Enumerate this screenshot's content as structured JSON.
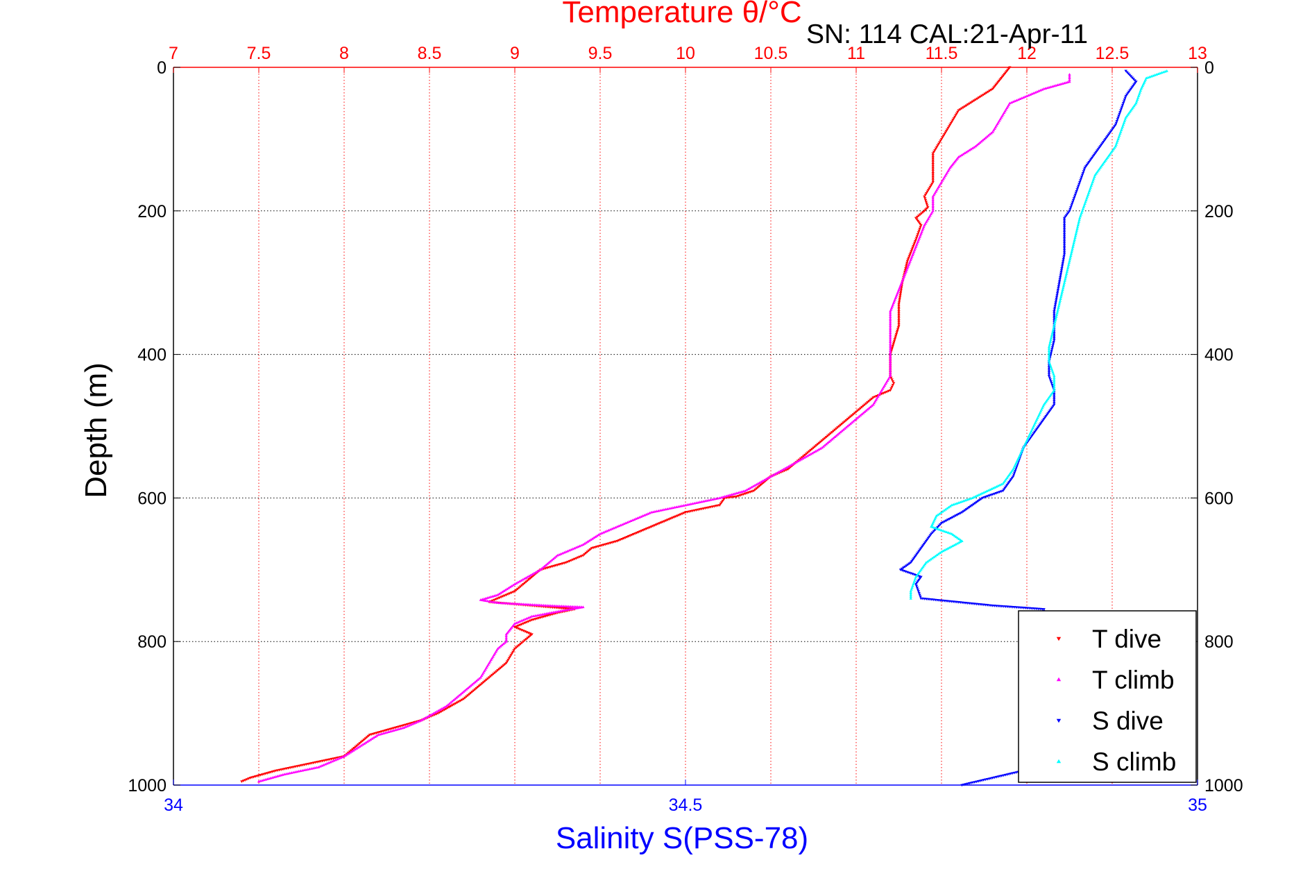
{
  "chart_data": {
    "type": "scatter",
    "title": "Temperature θ/°C",
    "subtitle": "SN: 114  CAL:21-Apr-11",
    "ylabel": "Depth (m)",
    "xlabel_bottom": "Salinity S(PSS-78)",
    "top_axis": {
      "range": [
        7,
        13
      ],
      "ticks": [
        "7",
        "7.5",
        "8",
        "8.5",
        "9",
        "9.5",
        "10",
        "10.5",
        "11",
        "11.5",
        "12",
        "12.5",
        "13"
      ],
      "color": "#ff0000"
    },
    "bottom_axis": {
      "range": [
        34,
        35
      ],
      "ticks": [
        "34",
        "34.5",
        "35"
      ],
      "color": "#0000ff"
    },
    "y_axis": {
      "range": [
        0,
        1000
      ],
      "reversed": true,
      "ticks": [
        "0",
        "200",
        "400",
        "600",
        "800",
        "1000"
      ]
    },
    "grid": true,
    "legend_position": "bottom-right",
    "series": [
      {
        "name": "T dive",
        "axis": "temperature",
        "color": "#ff0000",
        "marker": "triangle-down",
        "points": [
          [
            0,
            11.9
          ],
          [
            15,
            11.85
          ],
          [
            30,
            11.8
          ],
          [
            45,
            11.7
          ],
          [
            60,
            11.6
          ],
          [
            80,
            11.55
          ],
          [
            100,
            11.5
          ],
          [
            120,
            11.45
          ],
          [
            140,
            11.45
          ],
          [
            160,
            11.45
          ],
          [
            180,
            11.4
          ],
          [
            195,
            11.42
          ],
          [
            200,
            11.4
          ],
          [
            210,
            11.35
          ],
          [
            220,
            11.38
          ],
          [
            240,
            11.35
          ],
          [
            270,
            11.3
          ],
          [
            300,
            11.27
          ],
          [
            330,
            11.25
          ],
          [
            360,
            11.25
          ],
          [
            400,
            11.2
          ],
          [
            430,
            11.2
          ],
          [
            440,
            11.22
          ],
          [
            450,
            11.2
          ],
          [
            460,
            11.1
          ],
          [
            470,
            11.05
          ],
          [
            480,
            11.0
          ],
          [
            500,
            10.9
          ],
          [
            520,
            10.8
          ],
          [
            540,
            10.7
          ],
          [
            560,
            10.6
          ],
          [
            570,
            10.5
          ],
          [
            580,
            10.45
          ],
          [
            590,
            10.4
          ],
          [
            598,
            10.3
          ],
          [
            600,
            10.23
          ],
          [
            610,
            10.2
          ],
          [
            620,
            10.0
          ],
          [
            640,
            9.8
          ],
          [
            660,
            9.6
          ],
          [
            670,
            9.45
          ],
          [
            680,
            9.4
          ],
          [
            690,
            9.3
          ],
          [
            700,
            9.15
          ],
          [
            710,
            9.1
          ],
          [
            720,
            9.05
          ],
          [
            730,
            9.0
          ],
          [
            740,
            8.9
          ],
          [
            745,
            8.85
          ],
          [
            748,
            9.0
          ],
          [
            752,
            9.2
          ],
          [
            755,
            9.35
          ],
          [
            760,
            9.25
          ],
          [
            770,
            9.1
          ],
          [
            780,
            9.0
          ],
          [
            790,
            9.1
          ],
          [
            800,
            9.05
          ],
          [
            810,
            9.0
          ],
          [
            830,
            8.95
          ],
          [
            850,
            8.85
          ],
          [
            870,
            8.75
          ],
          [
            880,
            8.7
          ],
          [
            900,
            8.55
          ],
          [
            910,
            8.45
          ],
          [
            920,
            8.3
          ],
          [
            930,
            8.15
          ],
          [
            940,
            8.1
          ],
          [
            950,
            8.05
          ],
          [
            960,
            8.0
          ],
          [
            970,
            7.8
          ],
          [
            980,
            7.6
          ],
          [
            990,
            7.45
          ],
          [
            995,
            7.4
          ]
        ]
      },
      {
        "name": "T climb",
        "axis": "temperature",
        "color": "#ff00ff",
        "marker": "triangle-up",
        "points": [
          [
            10,
            12.25
          ],
          [
            20,
            12.25
          ],
          [
            30,
            12.1
          ],
          [
            40,
            12.0
          ],
          [
            50,
            11.9
          ],
          [
            70,
            11.85
          ],
          [
            90,
            11.8
          ],
          [
            110,
            11.7
          ],
          [
            125,
            11.6
          ],
          [
            140,
            11.55
          ],
          [
            160,
            11.5
          ],
          [
            180,
            11.45
          ],
          [
            200,
            11.45
          ],
          [
            220,
            11.4
          ],
          [
            250,
            11.35
          ],
          [
            280,
            11.3
          ],
          [
            310,
            11.25
          ],
          [
            340,
            11.2
          ],
          [
            360,
            11.2
          ],
          [
            380,
            11.2
          ],
          [
            400,
            11.2
          ],
          [
            430,
            11.2
          ],
          [
            450,
            11.15
          ],
          [
            470,
            11.1
          ],
          [
            490,
            11.0
          ],
          [
            510,
            10.9
          ],
          [
            530,
            10.8
          ],
          [
            550,
            10.65
          ],
          [
            570,
            10.5
          ],
          [
            590,
            10.35
          ],
          [
            600,
            10.2
          ],
          [
            610,
            10.0
          ],
          [
            620,
            9.8
          ],
          [
            630,
            9.7
          ],
          [
            640,
            9.6
          ],
          [
            650,
            9.5
          ],
          [
            665,
            9.4
          ],
          [
            680,
            9.25
          ],
          [
            700,
            9.15
          ],
          [
            720,
            9.0
          ],
          [
            735,
            8.9
          ],
          [
            742,
            8.8
          ],
          [
            746,
            8.9
          ],
          [
            750,
            9.2
          ],
          [
            752,
            9.4
          ],
          [
            756,
            9.3
          ],
          [
            765,
            9.1
          ],
          [
            775,
            9.0
          ],
          [
            790,
            8.95
          ],
          [
            800,
            8.95
          ],
          [
            810,
            8.9
          ],
          [
            830,
            8.85
          ],
          [
            850,
            8.8
          ],
          [
            870,
            8.7
          ],
          [
            890,
            8.6
          ],
          [
            910,
            8.45
          ],
          [
            920,
            8.35
          ],
          [
            930,
            8.2
          ],
          [
            945,
            8.1
          ],
          [
            960,
            8.0
          ],
          [
            975,
            7.85
          ],
          [
            985,
            7.65
          ],
          [
            995,
            7.5
          ]
        ]
      },
      {
        "name": "S dive",
        "axis": "salinity",
        "color": "#0000ff",
        "marker": "triangle-down",
        "points": [
          [
            5,
            34.93
          ],
          [
            20,
            34.94
          ],
          [
            40,
            34.93
          ],
          [
            60,
            34.925
          ],
          [
            80,
            34.92
          ],
          [
            100,
            34.91
          ],
          [
            120,
            34.9
          ],
          [
            140,
            34.89
          ],
          [
            160,
            34.885
          ],
          [
            180,
            34.88
          ],
          [
            200,
            34.875
          ],
          [
            210,
            34.87
          ],
          [
            230,
            34.87
          ],
          [
            260,
            34.87
          ],
          [
            300,
            34.865
          ],
          [
            340,
            34.86
          ],
          [
            380,
            34.86
          ],
          [
            410,
            34.855
          ],
          [
            430,
            34.855
          ],
          [
            450,
            34.86
          ],
          [
            470,
            34.86
          ],
          [
            490,
            34.85
          ],
          [
            510,
            34.84
          ],
          [
            530,
            34.83
          ],
          [
            550,
            34.825
          ],
          [
            570,
            34.82
          ],
          [
            590,
            34.81
          ],
          [
            600,
            34.79
          ],
          [
            610,
            34.78
          ],
          [
            620,
            34.77
          ],
          [
            635,
            34.75
          ],
          [
            650,
            34.74
          ],
          [
            670,
            34.73
          ],
          [
            690,
            34.72
          ],
          [
            700,
            34.71
          ],
          [
            710,
            34.73
          ],
          [
            720,
            34.725
          ],
          [
            740,
            34.73
          ],
          [
            750,
            34.8
          ],
          [
            755,
            34.85
          ],
          [
            980,
            34.83
          ],
          [
            990,
            34.8
          ],
          [
            1000,
            34.77
          ]
        ]
      },
      {
        "name": "S climb",
        "axis": "salinity",
        "color": "#00ffff",
        "marker": "triangle-up",
        "points": [
          [
            5,
            34.97
          ],
          [
            15,
            34.95
          ],
          [
            30,
            34.945
          ],
          [
            50,
            34.94
          ],
          [
            70,
            34.93
          ],
          [
            90,
            34.925
          ],
          [
            110,
            34.92
          ],
          [
            130,
            34.91
          ],
          [
            150,
            34.9
          ],
          [
            170,
            34.895
          ],
          [
            190,
            34.89
          ],
          [
            210,
            34.885
          ],
          [
            240,
            34.88
          ],
          [
            270,
            34.875
          ],
          [
            300,
            34.87
          ],
          [
            330,
            34.865
          ],
          [
            360,
            34.86
          ],
          [
            390,
            34.855
          ],
          [
            410,
            34.855
          ],
          [
            430,
            34.86
          ],
          [
            450,
            34.86
          ],
          [
            470,
            34.85
          ],
          [
            500,
            34.84
          ],
          [
            530,
            34.83
          ],
          [
            560,
            34.82
          ],
          [
            580,
            34.81
          ],
          [
            600,
            34.78
          ],
          [
            610,
            34.76
          ],
          [
            625,
            34.745
          ],
          [
            640,
            34.74
          ],
          [
            650,
            34.76
          ],
          [
            660,
            34.77
          ],
          [
            675,
            34.75
          ],
          [
            690,
            34.735
          ],
          [
            710,
            34.725
          ],
          [
            730,
            34.72
          ],
          [
            740,
            34.72
          ]
        ]
      }
    ]
  },
  "legend": {
    "items": [
      {
        "label": "T dive",
        "color": "#ff0000",
        "marker": "triangle-down"
      },
      {
        "label": "T climb",
        "color": "#ff00ff",
        "marker": "triangle-up"
      },
      {
        "label": "S dive",
        "color": "#0000ff",
        "marker": "triangle-down"
      },
      {
        "label": "S climb",
        "color": "#00ffff",
        "marker": "triangle-up"
      }
    ]
  }
}
